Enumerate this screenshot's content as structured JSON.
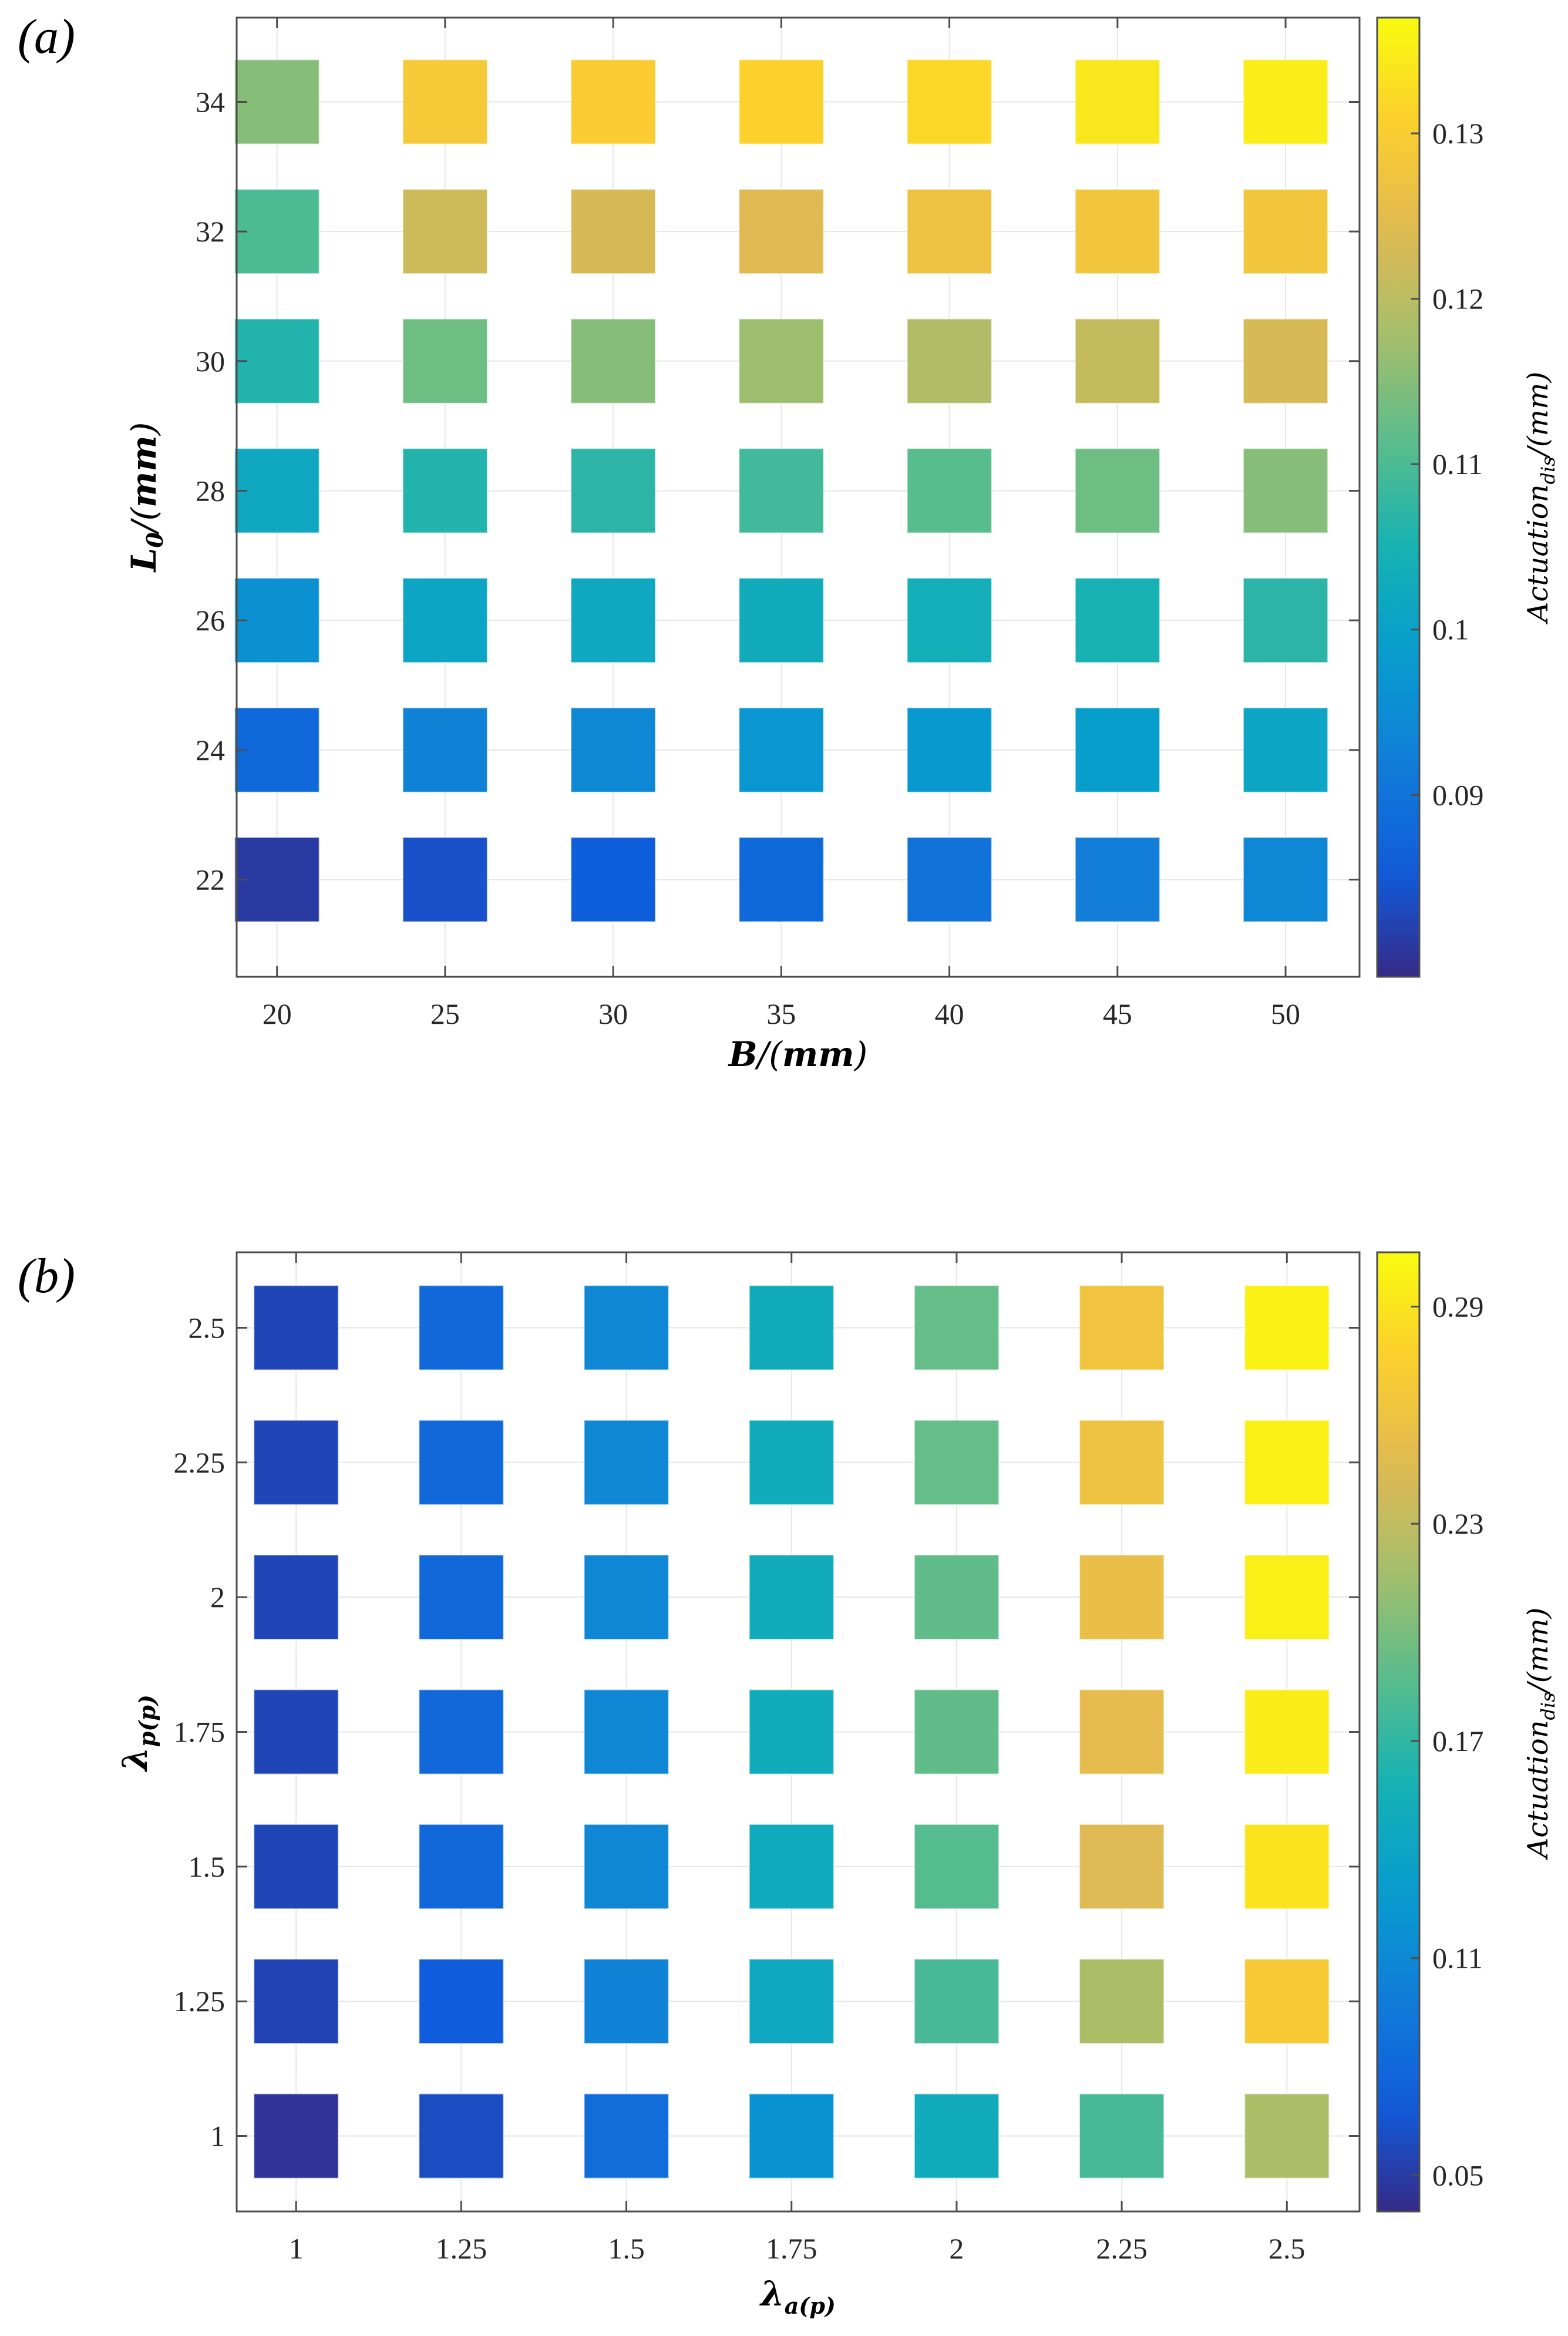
{
  "chart_data": [
    {
      "type": "heatmap",
      "panel_label": "(a)",
      "xlabel": "B/(mm)",
      "ylabel": "L0/(mm)",
      "x": [
        20,
        25,
        30,
        35,
        40,
        45,
        50
      ],
      "y": [
        22,
        24,
        26,
        28,
        30,
        32,
        34
      ],
      "x_tick_labels": [
        "20",
        "25",
        "30",
        "35",
        "40",
        "45",
        "50"
      ],
      "y_tick_labels": [
        "22",
        "24",
        "26",
        "28",
        "30",
        "32",
        "34"
      ],
      "xlim": [
        18.8,
        52.2
      ],
      "ylim": [
        20.5,
        35.3
      ],
      "values": [
        [
          0.081,
          0.084,
          0.086,
          0.088,
          0.09,
          0.092,
          0.094
        ],
        [
          0.088,
          0.093,
          0.094,
          0.097,
          0.098,
          0.099,
          0.101
        ],
        [
          0.096,
          0.101,
          0.102,
          0.103,
          0.104,
          0.105,
          0.107
        ],
        [
          0.102,
          0.106,
          0.107,
          0.109,
          0.111,
          0.113,
          0.115
        ],
        [
          0.106,
          0.113,
          0.115,
          0.117,
          0.119,
          0.121,
          0.123
        ],
        [
          0.11,
          0.122,
          0.123,
          0.124,
          0.127,
          0.128,
          0.128
        ],
        [
          0.115,
          0.129,
          0.13,
          0.131,
          0.132,
          0.134,
          0.135
        ]
      ],
      "colorbar": {
        "label": "Actuation",
        "label_subscript": "dis",
        "label_suffix": "/(mm)",
        "range": [
          0.079,
          0.137
        ],
        "ticks": [
          0.09,
          0.1,
          0.11,
          0.12,
          0.13
        ],
        "tick_labels": [
          "0.09",
          "0.1",
          "0.11",
          "0.12",
          "0.13"
        ],
        "colormap": "parula"
      }
    },
    {
      "type": "heatmap",
      "panel_label": "(b)",
      "xlabel": "λa(p)",
      "ylabel": "λp(p)",
      "x": [
        1,
        1.25,
        1.5,
        1.75,
        2,
        2.25,
        2.5
      ],
      "y": [
        1,
        1.25,
        1.5,
        1.75,
        2,
        2.25,
        2.5
      ],
      "x_tick_labels": [
        "1",
        "1.25",
        "1.5",
        "1.75",
        "2",
        "2.25",
        "2.5"
      ],
      "y_tick_labels": [
        "1",
        "1.25",
        "1.5",
        "1.75",
        "2",
        "2.25",
        "2.5"
      ],
      "xlim": [
        0.91,
        2.61
      ],
      "ylim": [
        0.86,
        2.64
      ],
      "values": [
        [
          0.045,
          0.06,
          0.085,
          0.12,
          0.15,
          0.18,
          0.22
        ],
        [
          0.055,
          0.07,
          0.105,
          0.145,
          0.18,
          0.22,
          0.27
        ],
        [
          0.056,
          0.08,
          0.108,
          0.148,
          0.185,
          0.245,
          0.29
        ],
        [
          0.056,
          0.08,
          0.108,
          0.15,
          0.19,
          0.25,
          0.295
        ],
        [
          0.056,
          0.08,
          0.108,
          0.15,
          0.19,
          0.255,
          0.297
        ],
        [
          0.056,
          0.08,
          0.108,
          0.15,
          0.192,
          0.26,
          0.298
        ],
        [
          0.056,
          0.08,
          0.108,
          0.15,
          0.192,
          0.262,
          0.299
        ]
      ],
      "colorbar": {
        "label": "Actuation",
        "label_subscript": "dis",
        "label_suffix": "/(mm)",
        "range": [
          0.04,
          0.305
        ],
        "ticks": [
          0.05,
          0.11,
          0.17,
          0.23,
          0.29
        ],
        "tick_labels": [
          "0.05",
          "0.11",
          "0.17",
          "0.23",
          "0.29"
        ],
        "colormap": "parula"
      }
    }
  ]
}
